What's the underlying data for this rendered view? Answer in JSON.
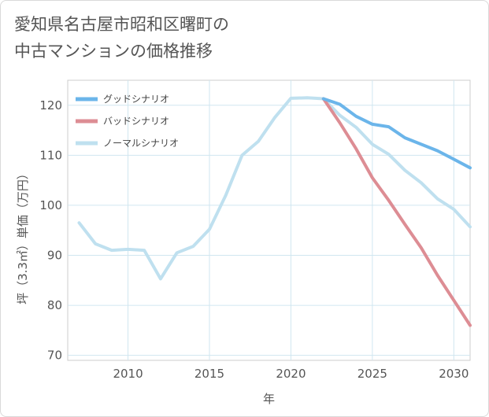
{
  "title_lines": [
    "愛知県名古屋市昭和区曙町の",
    "中古マンションの価格推移"
  ],
  "chart_data": {
    "type": "line",
    "title": "愛知県名古屋市昭和区曙町の中古マンションの価格推移",
    "xlabel": "年",
    "ylabel": "坪（3.3㎡）単価（万円）",
    "xlim": [
      2006.3,
      2031
    ],
    "ylim": [
      69,
      125
    ],
    "xticks": [
      2010,
      2015,
      2020,
      2025,
      2030
    ],
    "yticks": [
      70,
      80,
      90,
      100,
      110,
      120
    ],
    "grid": true,
    "legend_position": "top-left",
    "series": [
      {
        "name": "グッドシナリオ",
        "color": "#6bb5ea",
        "x": [
          2022,
          2023,
          2024,
          2025,
          2026,
          2027,
          2028,
          2029,
          2030,
          2031
        ],
        "values": [
          121.3,
          120.2,
          117.8,
          116.2,
          115.7,
          113.5,
          112.2,
          110.9,
          109.2,
          107.5
        ]
      },
      {
        "name": "バッドシナリオ",
        "color": "#dd8d94",
        "x": [
          2022,
          2023,
          2024,
          2025,
          2026,
          2027,
          2028,
          2029,
          2030,
          2031
        ],
        "values": [
          121.3,
          116.5,
          111.3,
          105.5,
          101.0,
          96.2,
          91.5,
          86.0,
          81.0,
          76.0
        ]
      },
      {
        "name": "ノーマルシナリオ",
        "color": "#bfe0ef",
        "x": [
          2007,
          2008,
          2009,
          2010,
          2011,
          2012,
          2013,
          2014,
          2015,
          2016,
          2017,
          2018,
          2019,
          2020,
          2021,
          2022,
          2023,
          2024,
          2025,
          2026,
          2027,
          2028,
          2029,
          2030,
          2031
        ],
        "values": [
          96.5,
          92.3,
          91.0,
          91.2,
          91.0,
          85.3,
          90.5,
          91.8,
          95.2,
          102.0,
          110.0,
          112.8,
          117.5,
          121.4,
          121.5,
          121.3,
          118.0,
          115.6,
          112.2,
          110.2,
          107.0,
          104.5,
          101.3,
          99.2,
          95.7
        ]
      }
    ]
  }
}
